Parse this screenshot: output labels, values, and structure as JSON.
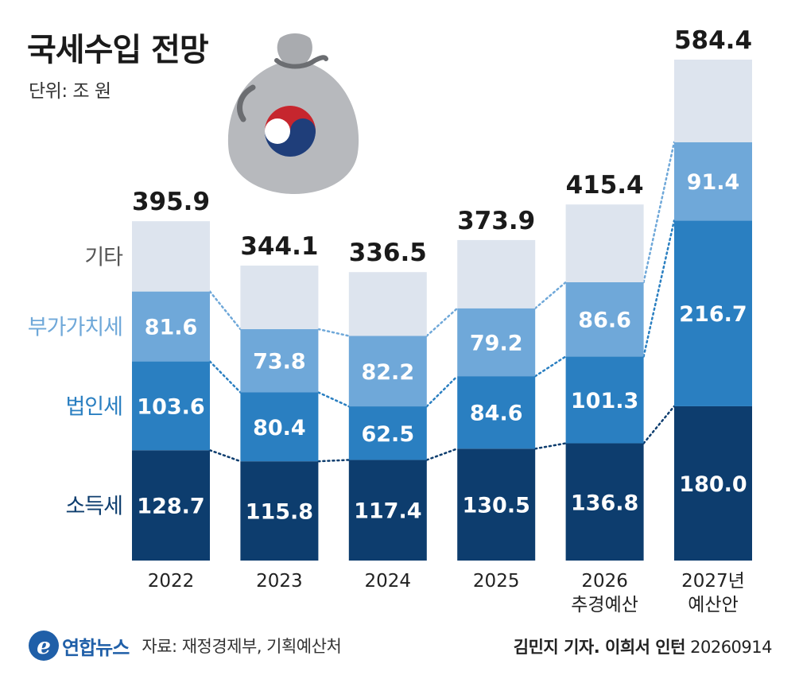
{
  "header": {
    "title": "국세수입 전망",
    "unit": "단위: 조 원"
  },
  "footer": {
    "logo": "연합뉴스",
    "source": "자료: 재정경제부, 기획예산처",
    "credit_name": "김민지 기자. 이희서 인턴",
    "credit_date": "20260914"
  },
  "colors": {
    "income": "#0d3d6e",
    "corporate": "#2a7fc1",
    "vat": "#6fa8d9",
    "other": "#dde4ee",
    "label_income": "#0d3d6e",
    "label_corporate": "#2a7fc1",
    "label_vat": "#6fa8d9",
    "label_other": "#555555"
  },
  "chart_data": {
    "type": "bar",
    "stacked": true,
    "categories": [
      [
        "2022"
      ],
      [
        "2023"
      ],
      [
        "2024"
      ],
      [
        "2025"
      ],
      [
        "2026",
        "추경예산"
      ],
      [
        "2027년",
        "예산안"
      ]
    ],
    "series": [
      {
        "name": "소득세",
        "key": "income",
        "values": [
          128.7,
          115.8,
          117.4,
          130.5,
          136.8,
          180.0
        ]
      },
      {
        "name": "법인세",
        "key": "corporate",
        "values": [
          103.6,
          80.4,
          62.5,
          84.6,
          101.3,
          216.7
        ]
      },
      {
        "name": "부가가치세",
        "key": "vat",
        "values": [
          81.6,
          73.8,
          82.2,
          79.2,
          86.6,
          91.4
        ]
      },
      {
        "name": "기타",
        "key": "other",
        "values": [
          82.0,
          74.1,
          74.4,
          79.6,
          90.7,
          96.3
        ]
      }
    ],
    "totals": [
      395.9,
      344.1,
      336.5,
      373.9,
      415.4,
      584.4
    ],
    "total_labels": [
      "395.9",
      "344.1",
      "336.5",
      "373.9",
      "415.4",
      "584.4"
    ],
    "value_labels": [
      [
        "128.7",
        "115.8",
        "117.4",
        "130.5",
        "136.8",
        "180.0"
      ],
      [
        "103.6",
        "80.4",
        "62.5",
        "84.6",
        "101.3",
        "216.7"
      ],
      [
        "81.6",
        "73.8",
        "82.2",
        "79.2",
        "86.6",
        "91.4"
      ]
    ],
    "ylim": [
      0,
      584.4
    ],
    "grid": false,
    "connector_lines": "dotted"
  }
}
